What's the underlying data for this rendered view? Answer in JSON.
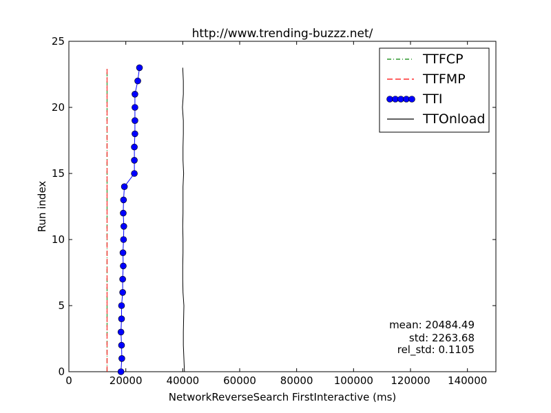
{
  "chart_data": {
    "type": "line",
    "title": "http://www.trending-buzzz.net/",
    "xlabel": "NetworkReverseSearch FirstInteractive (ms)",
    "ylabel": "Run index",
    "xlim": [
      0,
      150000
    ],
    "ylim": [
      0,
      25
    ],
    "xticks": [
      0,
      20000,
      40000,
      60000,
      80000,
      100000,
      120000,
      140000
    ],
    "yticks": [
      0,
      5,
      10,
      15,
      20,
      25
    ],
    "grid": false,
    "legend_position": "top-right",
    "series": [
      {
        "name": "TTFCP",
        "style": "dashdot",
        "color": "#008000",
        "x": [
          13400,
          13400,
          13400,
          13400,
          13400,
          13400,
          13400,
          13400,
          13400,
          13400,
          13400,
          13400,
          13400,
          13400,
          13400,
          13400,
          13400,
          13400,
          13400,
          13400,
          13400,
          13400,
          13400,
          13400
        ],
        "y": [
          0,
          1,
          2,
          3,
          4,
          5,
          6,
          7,
          8,
          9,
          10,
          11,
          12,
          13,
          14,
          15,
          16,
          17,
          18,
          19,
          20,
          21,
          22,
          23
        ]
      },
      {
        "name": "TTFMP",
        "style": "dashed",
        "color": "#ff0000",
        "x": [
          13400,
          13400,
          13400,
          13400,
          13400,
          13400,
          13400,
          13400,
          13400,
          13400,
          13400,
          13400,
          13400,
          13400,
          13400,
          13400,
          13400,
          13400,
          13400,
          13400,
          13400,
          13400,
          13400,
          13400
        ],
        "y": [
          0,
          1,
          2,
          3,
          4,
          5,
          6,
          7,
          8,
          9,
          10,
          11,
          12,
          13,
          14,
          15,
          16,
          17,
          18,
          19,
          20,
          21,
          22,
          23
        ]
      },
      {
        "name": "TTI",
        "style": "line-marker",
        "color": "#0000ff",
        "x": [
          18300,
          18600,
          18500,
          18300,
          18500,
          18500,
          18900,
          18900,
          19100,
          19000,
          19200,
          19300,
          19100,
          19200,
          19500,
          23000,
          23000,
          23000,
          23200,
          23200,
          23200,
          23200,
          24200,
          24800
        ],
        "y": [
          0,
          1,
          2,
          3,
          4,
          5,
          6,
          7,
          8,
          9,
          10,
          11,
          12,
          13,
          14,
          15,
          16,
          17,
          18,
          19,
          20,
          21,
          22,
          23
        ]
      },
      {
        "name": "TTOnload",
        "style": "solid",
        "color": "#000000",
        "x": [
          40600,
          40400,
          40200,
          40200,
          40300,
          40400,
          40100,
          40000,
          40000,
          40100,
          40100,
          40000,
          40100,
          40100,
          40100,
          40300,
          40100,
          40100,
          40200,
          40200,
          39900,
          40200,
          40200,
          40000
        ],
        "y": [
          0,
          1,
          2,
          3,
          4,
          5,
          6,
          7,
          8,
          9,
          10,
          11,
          12,
          13,
          14,
          15,
          16,
          17,
          18,
          19,
          20,
          21,
          22,
          23
        ]
      }
    ],
    "stats": {
      "mean": "mean: 20484.49",
      "std": "std: 2263.68",
      "rel_std": "rel_std: 0.1105"
    }
  }
}
